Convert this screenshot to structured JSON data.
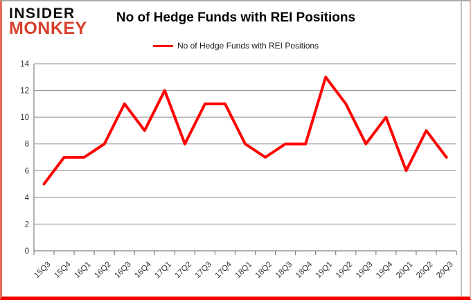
{
  "logo": {
    "line1": "INSIDER",
    "line2": "MONKEY",
    "line1_color": "#0e0e0e",
    "line2_color": "#d7402b"
  },
  "header": {
    "title": "No of Hedge Funds with REI Positions"
  },
  "legend": {
    "label": "No of Hedge Funds with REI Positions",
    "swatch_color": "#fe0000"
  },
  "chart_data": {
    "type": "line",
    "title": "No of Hedge Funds with REI Positions",
    "categories": [
      "15Q3",
      "15Q4",
      "16Q1",
      "16Q2",
      "16Q3",
      "16Q4",
      "17Q1",
      "17Q2",
      "17Q3",
      "17Q4",
      "18Q1",
      "18Q2",
      "18Q3",
      "18Q4",
      "19Q1",
      "19Q2",
      "19Q3",
      "19Q4",
      "20Q1",
      "20Q2",
      "20Q3"
    ],
    "series": [
      {
        "name": "No of Hedge Funds with REI Positions",
        "values": [
          5,
          7,
          7,
          8,
          11,
          9,
          12,
          8,
          11,
          11,
          8,
          7,
          8,
          8,
          13,
          11,
          8,
          10,
          6,
          9,
          7
        ]
      }
    ],
    "xlabel": "",
    "ylabel": "",
    "ylim": [
      0,
      14
    ],
    "ytick_step": 2,
    "yticks": [
      0,
      2,
      4,
      6,
      8,
      10,
      12,
      14
    ],
    "grid": true,
    "legend_position": "top-center",
    "line_color": "#fe0000",
    "line_width": 4,
    "gridline_color": "#8c8c8c",
    "axis_color": "#7f7f7f",
    "label_color": "#333333",
    "frame_line_color": "#ababab"
  }
}
